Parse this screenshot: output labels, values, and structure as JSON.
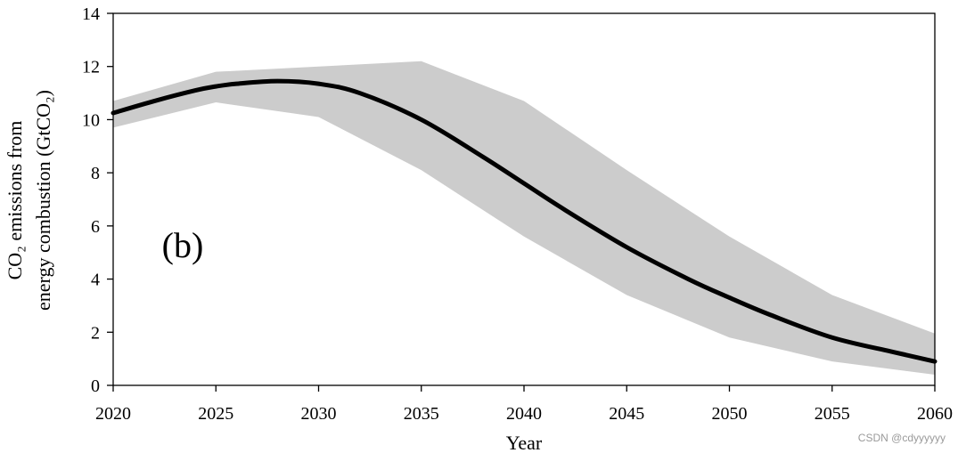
{
  "chart_data": {
    "type": "area",
    "panel_label": "(b)",
    "xlabel": "Year",
    "ylabel_line1": "CO₂ emissions from",
    "ylabel_line2": "energy combustion (GtCO₂)",
    "xlim": [
      2020,
      2060
    ],
    "ylim": [
      0,
      14
    ],
    "x_ticks": [
      2020,
      2025,
      2030,
      2035,
      2040,
      2045,
      2050,
      2055,
      2060
    ],
    "y_ticks": [
      0,
      2,
      4,
      6,
      8,
      10,
      12,
      14
    ],
    "grid": false,
    "series": [
      {
        "kind": "line",
        "color": "#000000",
        "x": [
          2020,
          2022,
          2024,
          2025,
          2026,
          2028,
          2030,
          2032,
          2035,
          2038,
          2040,
          2042,
          2045,
          2048,
          2050,
          2052,
          2055,
          2058,
          2060
        ],
        "y": [
          10.25,
          10.7,
          11.1,
          11.25,
          11.35,
          11.45,
          11.35,
          11.0,
          10.0,
          8.6,
          7.6,
          6.6,
          5.2,
          4.0,
          3.3,
          2.65,
          1.8,
          1.25,
          0.9
        ]
      },
      {
        "kind": "band",
        "color": "#cccccc",
        "x": [
          2020,
          2025,
          2030,
          2035,
          2040,
          2045,
          2050,
          2055,
          2060
        ],
        "upper": [
          10.7,
          11.8,
          12.0,
          12.2,
          10.7,
          8.1,
          5.6,
          3.4,
          1.95
        ],
        "lower": [
          9.7,
          10.65,
          10.1,
          8.1,
          5.6,
          3.4,
          1.8,
          0.9,
          0.4
        ]
      }
    ]
  },
  "watermark": "CSDN @cdyyyyyy"
}
